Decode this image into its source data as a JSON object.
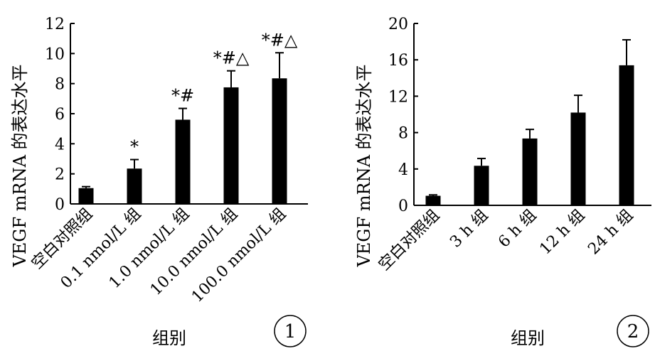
{
  "chart_data": [
    {
      "type": "bar",
      "panel_label": "①",
      "categories": [
        "空白对照组",
        "0.1 nmol/L 组",
        "1.0 nmol/L 组",
        "10.0 nmol/L 组",
        "100.0 nmol/L 组"
      ],
      "values": [
        1.05,
        2.35,
        5.6,
        7.75,
        8.35
      ],
      "errors": [
        0.1,
        0.6,
        0.75,
        1.1,
        1.7
      ],
      "significance": [
        "",
        "*",
        "*#",
        "*#△",
        "*#△"
      ],
      "xlabel": "组别",
      "ylabel": "VEGF mRNA 的表达水平",
      "ylim": [
        0,
        12
      ],
      "yticks": [
        0,
        2,
        4,
        6,
        8,
        10,
        12
      ]
    },
    {
      "type": "bar",
      "panel_label": "②",
      "categories": [
        "空白对照组",
        "3 h 组",
        "6 h 组",
        "12 h 组",
        "24 h 组"
      ],
      "values": [
        1.05,
        4.35,
        7.35,
        10.2,
        15.4
      ],
      "errors": [
        0.1,
        0.8,
        1.0,
        1.9,
        2.8
      ],
      "significance": [
        "",
        "",
        "",
        "",
        ""
      ],
      "xlabel": "组别",
      "ylabel": "VEGF mRNA 的表达水平",
      "ylim": [
        0,
        20
      ],
      "yticks": [
        0,
        4,
        8,
        12,
        16,
        20
      ]
    }
  ]
}
